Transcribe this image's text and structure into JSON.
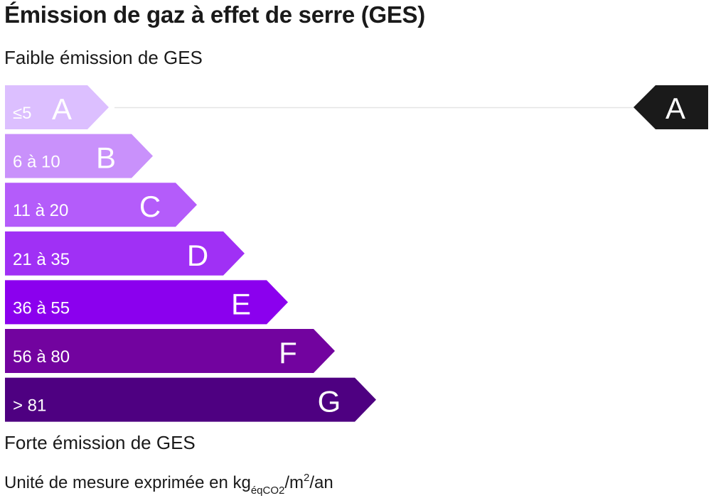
{
  "title": "Émission de gaz à effet de serre (GES)",
  "low_label": "Faible émission de GES",
  "high_label": "Forte émission de GES",
  "unit": {
    "prefix": "Unité de mesure exprimée en kg",
    "sub": "éqCO2",
    "middle": "/m",
    "sup": "2",
    "suffix": "/an"
  },
  "chart_data": {
    "type": "bar",
    "categories": [
      "A",
      "B",
      "C",
      "D",
      "E",
      "F",
      "G"
    ],
    "ranges": [
      "≤5",
      "6 à 10",
      "11 à 20",
      "21 à 35",
      "36 à 55",
      "56 à 80",
      "> 81"
    ],
    "colors": [
      "#dcbfff",
      "#c991fb",
      "#b45cfa",
      "#a030f5",
      "#8b00ee",
      "#72039f",
      "#4e0081"
    ],
    "current_class": "A",
    "indicator_color": "#1a1a1a"
  }
}
